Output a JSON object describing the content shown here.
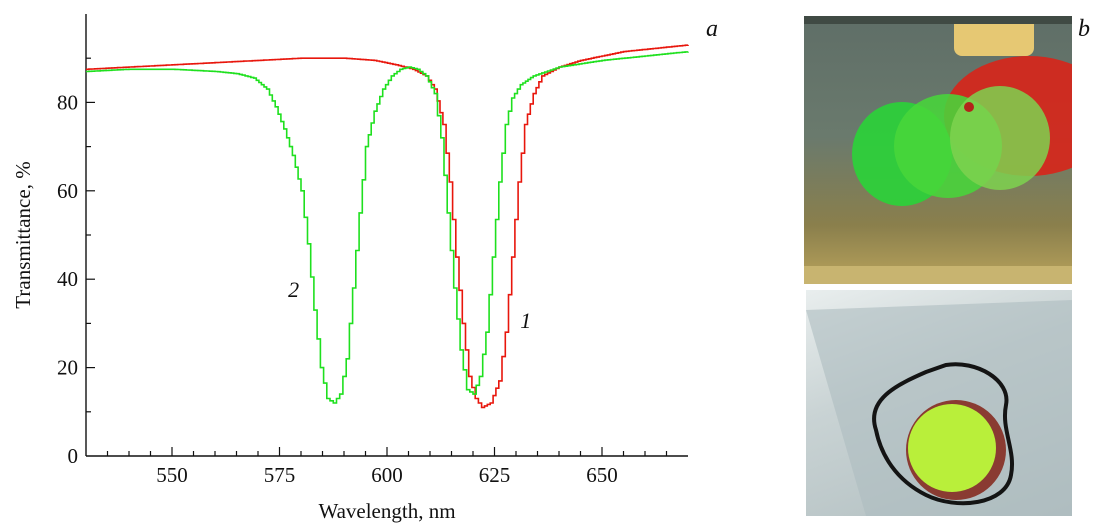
{
  "panel_a": {
    "letter": "a",
    "chart_data": {
      "type": "line",
      "xlabel": "Wavelength, nm",
      "ylabel": "Transmittance, %",
      "xlim": [
        530,
        670
      ],
      "ylim": [
        0,
        100
      ],
      "x_ticks": [
        550,
        575,
        600,
        625,
        650
      ],
      "y_ticks": [
        0,
        20,
        40,
        60,
        80
      ],
      "grid": false,
      "series": [
        {
          "name": "1",
          "color": "#e8160c",
          "points": [
            [
              530,
              87.5
            ],
            [
              540,
              88
            ],
            [
              550,
              88.5
            ],
            [
              560,
              89
            ],
            [
              570,
              89.5
            ],
            [
              580,
              90
            ],
            [
              590,
              90
            ],
            [
              597,
              89.5
            ],
            [
              602,
              88.5
            ],
            [
              606,
              87.5
            ],
            [
              609,
              86
            ],
            [
              611,
              83
            ],
            [
              613,
              75
            ],
            [
              614.5,
              62
            ],
            [
              616,
              45
            ],
            [
              617.5,
              30
            ],
            [
              619,
              18
            ],
            [
              620.5,
              13
            ],
            [
              622,
              11
            ],
            [
              624,
              12
            ],
            [
              626,
              17
            ],
            [
              627.5,
              28
            ],
            [
              629,
              45
            ],
            [
              630.5,
              62
            ],
            [
              632,
              75
            ],
            [
              634,
              82
            ],
            [
              636,
              86
            ],
            [
              640,
              88
            ],
            [
              645,
              89.5
            ],
            [
              650,
              90.5
            ],
            [
              655,
              91.5
            ],
            [
              660,
              92
            ],
            [
              665,
              92.5
            ],
            [
              670,
              93
            ]
          ]
        },
        {
          "name": "2",
          "color": "#1ee01e",
          "points": [
            [
              530,
              87
            ],
            [
              540,
              87.5
            ],
            [
              550,
              87.5
            ],
            [
              560,
              87
            ],
            [
              565,
              86.5
            ],
            [
              569,
              85.5
            ],
            [
              572,
              83
            ],
            [
              574,
              79
            ],
            [
              576,
              74
            ],
            [
              578,
              68
            ],
            [
              580,
              60
            ],
            [
              581.5,
              48
            ],
            [
              583,
              33
            ],
            [
              584.5,
              20
            ],
            [
              586,
              13
            ],
            [
              587.5,
              12
            ],
            [
              589,
              14
            ],
            [
              590.5,
              22
            ],
            [
              592,
              38
            ],
            [
              593.5,
              55
            ],
            [
              595,
              70
            ],
            [
              597,
              78
            ],
            [
              599,
              83
            ],
            [
              601,
              86
            ],
            [
              603,
              87.5
            ],
            [
              605,
              88
            ],
            [
              607,
              87.5
            ],
            [
              609,
              86
            ],
            [
              611,
              82
            ],
            [
              612.5,
              72
            ],
            [
              614,
              55
            ],
            [
              615.5,
              38
            ],
            [
              617,
              24
            ],
            [
              618.5,
              15
            ],
            [
              620,
              14
            ],
            [
              621.5,
              18
            ],
            [
              623,
              28
            ],
            [
              624.5,
              45
            ],
            [
              626,
              62
            ],
            [
              627.5,
              75
            ],
            [
              629,
              81
            ],
            [
              631,
              84
            ],
            [
              634,
              86
            ],
            [
              640,
              88
            ],
            [
              650,
              89.5
            ],
            [
              660,
              90.5
            ],
            [
              670,
              91.5
            ]
          ]
        }
      ],
      "annotations": [
        {
          "text": "1",
          "x": 631,
          "y": 29
        },
        {
          "text": "2",
          "x": 577,
          "y": 36
        }
      ]
    }
  },
  "panel_b": {
    "letter": "b"
  }
}
